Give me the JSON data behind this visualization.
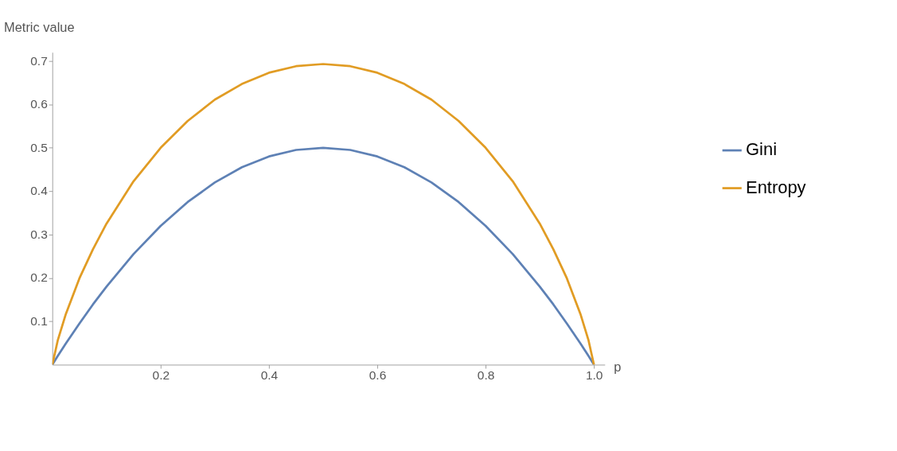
{
  "chart_data": {
    "type": "line",
    "xlabel": "p",
    "ylabel": "Metric value",
    "x": [
      0,
      0.01,
      0.025,
      0.05,
      0.075,
      0.1,
      0.15,
      0.2,
      0.25,
      0.3,
      0.35,
      0.4,
      0.45,
      0.5,
      0.55,
      0.6,
      0.65,
      0.7,
      0.75,
      0.8,
      0.85,
      0.9,
      0.925,
      0.95,
      0.975,
      0.99,
      1
    ],
    "series": [
      {
        "name": "Gini",
        "color": "#5e81b5",
        "values": [
          0,
          0.02,
          0.049,
          0.095,
          0.139,
          0.18,
          0.255,
          0.32,
          0.375,
          0.42,
          0.455,
          0.48,
          0.495,
          0.5,
          0.495,
          0.48,
          0.455,
          0.42,
          0.375,
          0.32,
          0.255,
          0.18,
          0.139,
          0.095,
          0.049,
          0.02,
          0
        ]
      },
      {
        "name": "Entropy",
        "color": "#e19c24",
        "values": [
          0,
          0.056,
          0.117,
          0.199,
          0.266,
          0.325,
          0.423,
          0.5,
          0.562,
          0.611,
          0.647,
          0.673,
          0.688,
          0.693,
          0.688,
          0.673,
          0.647,
          0.611,
          0.562,
          0.5,
          0.423,
          0.325,
          0.266,
          0.199,
          0.117,
          0.056,
          0
        ]
      }
    ],
    "xlim": [
      0,
      1.02
    ],
    "xticks": [
      0.2,
      0.4,
      0.6,
      0.8,
      {
        "value": 1,
        "label": "1.0"
      }
    ],
    "ylim": [
      0,
      0.72
    ],
    "yticks": [
      0.1,
      0.2,
      0.3,
      0.4,
      0.5,
      0.6,
      0.7
    ],
    "grid": false,
    "legend": "right",
    "marker": "none",
    "line_style": "solid"
  }
}
